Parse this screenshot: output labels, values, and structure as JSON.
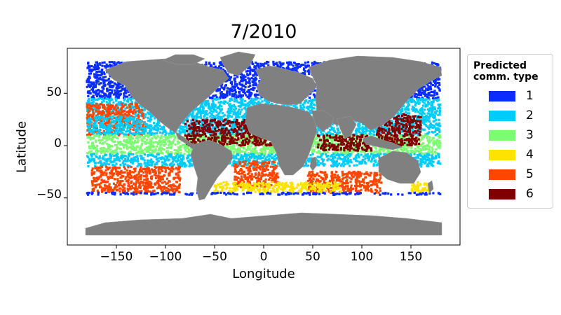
{
  "figure": {
    "title": "7/2010",
    "xlabel": "Longitude",
    "ylabel": "Latitude",
    "x_ticks": [
      "−150",
      "−100",
      "−50",
      "0",
      "50",
      "100",
      "150"
    ],
    "y_ticks": [
      "50",
      "0",
      "−50"
    ]
  },
  "legend": {
    "title_line1": "Predicted",
    "title_line2": "comm. type",
    "items": [
      {
        "label": "1",
        "color": "#0a2dff"
      },
      {
        "label": "2",
        "color": "#00ccfa"
      },
      {
        "label": "3",
        "color": "#7cfb73"
      },
      {
        "label": "4",
        "color": "#ffe300"
      },
      {
        "label": "5",
        "color": "#ff4500"
      },
      {
        "label": "6",
        "color": "#800000"
      }
    ]
  },
  "map": {
    "land_color": "#808080",
    "background": "#ffffff",
    "lon_range": [
      -200,
      200
    ],
    "lat_range": [
      -95,
      93
    ]
  },
  "chart_data": {
    "type": "scatter",
    "title": "7/2010",
    "xlabel": "Longitude",
    "ylabel": "Latitude",
    "xlim": [
      -200,
      200
    ],
    "ylim": [
      -95,
      93
    ],
    "x_ticks": [
      -150,
      -100,
      -50,
      0,
      50,
      100,
      150
    ],
    "y_ticks": [
      50,
      0,
      -50
    ],
    "legend_title": "Predicted comm. type",
    "legend_position": "outside-right",
    "series": [
      {
        "name": "1",
        "color": "#0a2dff"
      },
      {
        "name": "2",
        "color": "#00ccfa"
      },
      {
        "name": "3",
        "color": "#7cfb73"
      },
      {
        "name": "4",
        "color": "#ffe300"
      },
      {
        "name": "5",
        "color": "#ff4500"
      },
      {
        "name": "6",
        "color": "#800000"
      }
    ],
    "bands": [
      {
        "series": "1",
        "lon": [
          -180,
          180
        ],
        "lat": [
          45,
          80
        ]
      },
      {
        "series": "2",
        "lon": [
          -180,
          180
        ],
        "lat": [
          28,
          45
        ]
      },
      {
        "series": "5",
        "lon": [
          -180,
          -120
        ],
        "lat": [
          10,
          40
        ]
      },
      {
        "series": "2",
        "lon": [
          -180,
          180
        ],
        "lat": [
          10,
          28
        ]
      },
      {
        "series": "3",
        "lon": [
          -180,
          180
        ],
        "lat": [
          -8,
          10
        ]
      },
      {
        "series": "2",
        "lon": [
          -180,
          180
        ],
        "lat": [
          -20,
          -8
        ]
      },
      {
        "series": "5",
        "lon": [
          -175,
          -85
        ],
        "lat": [
          -45,
          -20
        ]
      },
      {
        "series": "5",
        "lon": [
          -30,
          15
        ],
        "lat": [
          -40,
          -15
        ]
      },
      {
        "series": "5",
        "lon": [
          45,
          120
        ],
        "lat": [
          -45,
          -25
        ]
      },
      {
        "series": "4",
        "lon": [
          -50,
          80
        ],
        "lat": [
          -45,
          -35
        ]
      },
      {
        "series": "4",
        "lon": [
          150,
          170
        ],
        "lat": [
          -45,
          -35
        ]
      },
      {
        "series": "1",
        "lon": [
          -180,
          180
        ],
        "lat": [
          -47,
          -45
        ]
      },
      {
        "series": "6",
        "lon": [
          -80,
          20
        ],
        "lat": [
          0,
          25
        ]
      },
      {
        "series": "6",
        "lon": [
          55,
          110
        ],
        "lat": [
          -5,
          10
        ]
      },
      {
        "series": "6",
        "lon": [
          115,
          160
        ],
        "lat": [
          0,
          30
        ]
      }
    ]
  }
}
